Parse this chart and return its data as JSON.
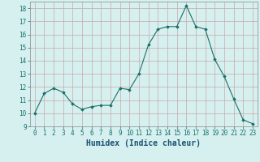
{
  "x": [
    0,
    1,
    2,
    3,
    4,
    5,
    6,
    7,
    8,
    9,
    10,
    11,
    12,
    13,
    14,
    15,
    16,
    17,
    18,
    19,
    20,
    21,
    22,
    23
  ],
  "y": [
    10,
    11.5,
    11.9,
    11.6,
    10.7,
    10.3,
    10.5,
    10.6,
    10.6,
    11.9,
    11.8,
    13.0,
    15.2,
    16.4,
    16.6,
    16.6,
    18.2,
    16.6,
    16.4,
    14.1,
    12.8,
    11.1,
    9.5,
    9.2
  ],
  "xlabel": "Humidex (Indice chaleur)",
  "xlim": [
    -0.5,
    23.5
  ],
  "ylim": [
    9,
    18.5
  ],
  "yticks": [
    9,
    10,
    11,
    12,
    13,
    14,
    15,
    16,
    17,
    18
  ],
  "xticks": [
    0,
    1,
    2,
    3,
    4,
    5,
    6,
    7,
    8,
    9,
    10,
    11,
    12,
    13,
    14,
    15,
    16,
    17,
    18,
    19,
    20,
    21,
    22,
    23
  ],
  "line_color": "#1a7068",
  "marker": "D",
  "marker_size": 1.8,
  "bg_color": "#d6f0f0",
  "grid_color": "#c8a8a8",
  "xlabel_fontsize": 7,
  "tick_fontsize": 5.5
}
